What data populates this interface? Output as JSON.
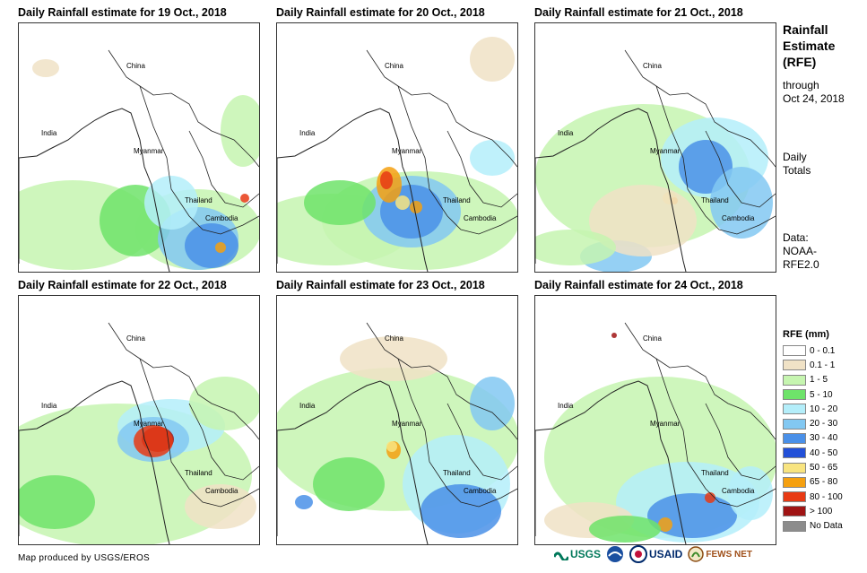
{
  "panels": [
    {
      "title": "Daily Rainfall estimate for 19 Oct., 2018"
    },
    {
      "title": "Daily Rainfall estimate for 20 Oct., 2018"
    },
    {
      "title": "Daily Rainfall estimate for 21 Oct., 2018"
    },
    {
      "title": "Daily Rainfall estimate for 22 Oct., 2018"
    },
    {
      "title": "Daily Rainfall estimate for 23 Oct., 2018"
    },
    {
      "title": "Daily Rainfall estimate for 24 Oct., 2018"
    }
  ],
  "map_labels": {
    "china": "China",
    "india": "India",
    "myanmar": "Myanmar",
    "thailand": "Thailand",
    "cambodia": "Cambodia"
  },
  "sidebar": {
    "title_line1": "Rainfall",
    "title_line2": "Estimate",
    "title_line3": "(RFE)",
    "through_line1": "through",
    "through_line2": "Oct 24, 2018",
    "totals_line1": "Daily",
    "totals_line2": "Totals",
    "data_line1": "Data:",
    "data_line2": "NOAA-",
    "data_line3": "RFE2.0"
  },
  "legend": {
    "title": "RFE (mm)",
    "items": [
      {
        "label": "0 - 0.1",
        "color": "#ffffff"
      },
      {
        "label": "0.1 - 1",
        "color": "#f0e2c6"
      },
      {
        "label": "1 - 5",
        "color": "#c6f5b0"
      },
      {
        "label": "5 - 10",
        "color": "#6ee36a"
      },
      {
        "label": "10 - 20",
        "color": "#b4eefa"
      },
      {
        "label": "20 - 30",
        "color": "#82c8f2"
      },
      {
        "label": "30 - 40",
        "color": "#4a90e8"
      },
      {
        "label": "40 - 50",
        "color": "#2250d8"
      },
      {
        "label": "50 - 65",
        "color": "#f8e480"
      },
      {
        "label": "65 - 80",
        "color": "#f5a010"
      },
      {
        "label": "80 - 100",
        "color": "#e83a14"
      },
      {
        "label": "> 100",
        "color": "#a01414"
      },
      {
        "label": "No Data",
        "color": "#8c8c8c"
      }
    ]
  },
  "credit": "Map produced by USGS/EROS",
  "logos": {
    "usgs": "USGS",
    "noaa": "NOAA",
    "usaid": "USAID",
    "fewsnet": "FEWS NET"
  }
}
